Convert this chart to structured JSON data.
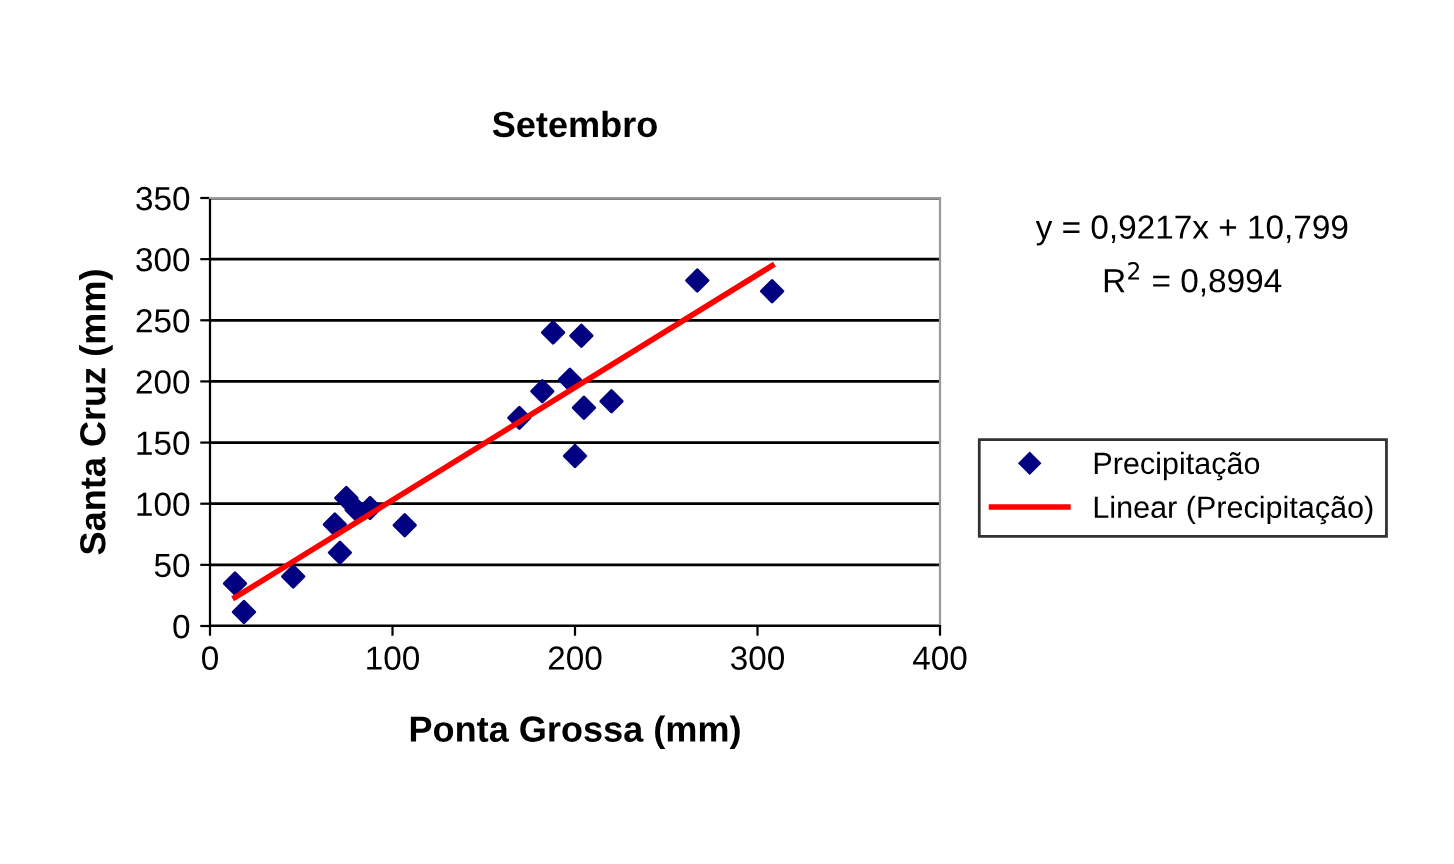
{
  "chart_data": {
    "type": "scatter",
    "title": "Setembro",
    "xlabel": "Ponta Grossa (mm)",
    "ylabel": "Santa Cruz (mm)",
    "x": [
      13.7,
      18.6,
      45.6,
      68.4,
      71.2,
      74.7,
      80.4,
      87.7,
      106.7,
      169.5,
      182.1,
      188,
      197.2,
      203.5,
      204.9,
      200,
      220,
      267,
      308
    ],
    "series": [
      {
        "name": "Precipitação",
        "color": "#000080",
        "marker": "diamond",
        "values": [
          34.8,
          11.5,
          40.4,
          83,
          60,
          104.7,
          94.9,
          96.5,
          82.4,
          170.2,
          192,
          240,
          201.3,
          237.3,
          178.4,
          139,
          183.8,
          282.6,
          273.8
        ]
      },
      {
        "name": "Linear (Precipitação)",
        "type": "line",
        "color": "#ff0000",
        "line_style": "solid",
        "x": [
          13.7,
          308
        ],
        "values": [
          23.4,
          294.7
        ]
      }
    ],
    "annotations": [
      "y = 0,9217x + 10,799",
      "R$^{2}$ = 0,8994"
    ],
    "xlim": [
      0,
      400
    ],
    "xticks": [
      0,
      100,
      200,
      300,
      400
    ],
    "ylim": [
      0,
      350
    ],
    "yticks": [
      0,
      50,
      100,
      150,
      200,
      250,
      300,
      350
    ],
    "grid": "y",
    "legend": "right"
  }
}
